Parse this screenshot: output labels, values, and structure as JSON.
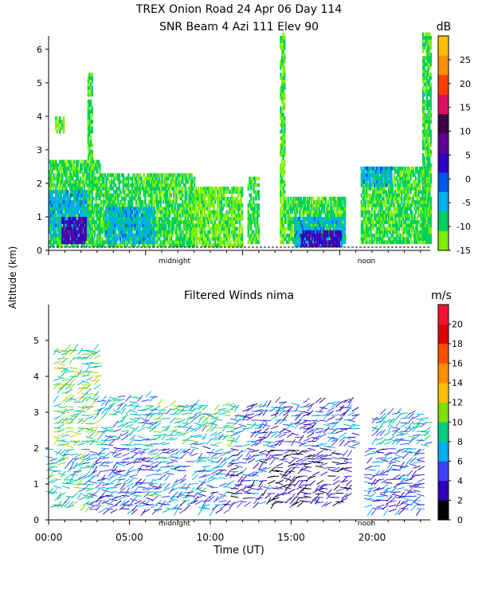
{
  "header": {
    "title_line1": "TREX Onion Road  24 Apr 06 Day 114",
    "title_line2": "SNR Beam 4 Azi 111 Elev 90"
  },
  "shared_ylabel": "Altitude (km)",
  "colors": {
    "snr_scale": [
      "#7fef00",
      "#00cf5f",
      "#00afef",
      "#0057ef",
      "#2f00c7",
      "#5f0097",
      "#3f0047",
      "#df0f5f",
      "#ff3f00",
      "#ff8f00",
      "#ffbf00"
    ],
    "wind_scale": [
      "#000000",
      "#2f00b7",
      "#3f3fff",
      "#00afef",
      "#00cf7f",
      "#7fdf00",
      "#ffbf00",
      "#ff8f00",
      "#ff4f00",
      "#df0000",
      "#ff0f2f"
    ]
  },
  "chart_data": [
    {
      "type": "heatmap",
      "title": "SNR Beam 4 Azi 111 Elev 90",
      "xlabel": "",
      "ylabel": "Altitude (km)",
      "xlim": [
        0,
        23.6
      ],
      "ylim": [
        0,
        6.4
      ],
      "y_ticks": [
        "0",
        "1",
        "2",
        "3",
        "4",
        "5",
        "6"
      ],
      "x_markers": [
        "midnight",
        "noon"
      ],
      "colorbar": {
        "unit": "dB",
        "ticks": [
          "-15",
          "-10",
          "-5",
          "0",
          "5",
          "10",
          "15",
          "20",
          "25"
        ],
        "range": [
          -15,
          30
        ]
      },
      "data_gaps_hours": [
        [
          18.7,
          19.3
        ]
      ],
      "regions": [
        {
          "x": [
            0.0,
            3.2
          ],
          "y": [
            0.1,
            2.7
          ],
          "value": -10
        },
        {
          "x": [
            0.0,
            2.5
          ],
          "y": [
            0.4,
            1.8
          ],
          "value": -5
        },
        {
          "x": [
            0.8,
            2.3
          ],
          "y": [
            0.2,
            0.9
          ],
          "value": 5
        },
        {
          "x": [
            0.4,
            0.9
          ],
          "y": [
            3.5,
            4.0
          ],
          "value": -12
        },
        {
          "x": [
            2.4,
            2.7
          ],
          "y": [
            0.2,
            5.2
          ],
          "value": -10
        },
        {
          "x": [
            3.2,
            9.0
          ],
          "y": [
            0.1,
            2.3
          ],
          "value": -10
        },
        {
          "x": [
            3.5,
            6.5
          ],
          "y": [
            0.2,
            1.3
          ],
          "value": -5
        },
        {
          "x": [
            8.8,
            12.0
          ],
          "y": [
            0.1,
            1.9
          ],
          "value": -12
        },
        {
          "x": [
            12.3,
            13.0
          ],
          "y": [
            0.2,
            2.2
          ],
          "value": -10
        },
        {
          "x": [
            14.3,
            14.6
          ],
          "y": [
            0.2,
            6.4
          ],
          "value": -12
        },
        {
          "x": [
            14.6,
            18.3
          ],
          "y": [
            0.2,
            1.6
          ],
          "value": -10
        },
        {
          "x": [
            15.2,
            18.3
          ],
          "y": [
            0.1,
            0.9
          ],
          "value": -5
        },
        {
          "x": [
            15.6,
            18.0
          ],
          "y": [
            0.1,
            0.6
          ],
          "value": 5
        },
        {
          "x": [
            19.3,
            23.6
          ],
          "y": [
            0.2,
            2.5
          ],
          "value": -10
        },
        {
          "x": [
            19.3,
            21.2
          ],
          "y": [
            1.9,
            2.5
          ],
          "value": -5
        },
        {
          "x": [
            23.1,
            23.6
          ],
          "y": [
            0.2,
            6.4
          ],
          "value": -10
        }
      ]
    },
    {
      "type": "scatter",
      "title": "Filtered Winds nima",
      "xlabel": "Time (UT)",
      "ylabel": "Altitude (km)",
      "xlim": [
        0,
        23.6
      ],
      "ylim": [
        0,
        6.0
      ],
      "x_ticks": [
        "00:00",
        "05:00",
        "10:00",
        "15:00",
        "20:00"
      ],
      "x_tick_values": [
        0,
        5,
        10,
        15,
        20
      ],
      "x_markers": [
        "midnight",
        "noon"
      ],
      "y_ticks": [
        "0",
        "1",
        "2",
        "3",
        "4",
        "5"
      ],
      "colorbar": {
        "unit": "m/s",
        "ticks": [
          "0",
          "2",
          "4",
          "6",
          "8",
          "10",
          "12",
          "14",
          "16",
          "18",
          "20"
        ],
        "range": [
          0,
          22
        ]
      },
      "wind_regions": [
        {
          "x": [
            0.3,
            3.0
          ],
          "y": [
            0.4,
            4.8
          ],
          "speed": 8
        },
        {
          "x": [
            3.0,
            6.5
          ],
          "y": [
            0.3,
            3.5
          ],
          "speed": 5
        },
        {
          "x": [
            6.5,
            11.5
          ],
          "y": [
            0.3,
            3.3
          ],
          "speed": 6
        },
        {
          "x": [
            11.5,
            14.0
          ],
          "y": [
            0.5,
            3.2
          ],
          "speed": 4
        },
        {
          "x": [
            14.0,
            19.0
          ],
          "y": [
            0.5,
            3.3
          ],
          "speed": 3
        },
        {
          "x": [
            20.0,
            23.4
          ],
          "y": [
            0.3,
            3.0
          ],
          "speed": 5
        }
      ]
    }
  ]
}
